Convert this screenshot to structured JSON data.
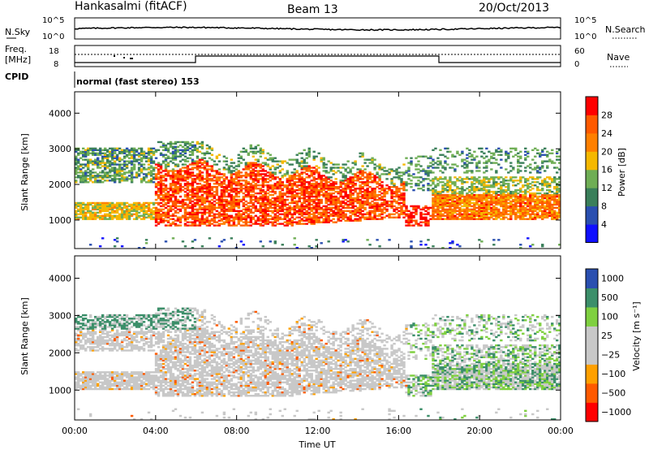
{
  "header": {
    "station": "Hankasalmi (fitACF)",
    "beam": "Beam 13",
    "date": "20/Oct/2013"
  },
  "noise_panel": {
    "left_label": "N.Sky",
    "right_label": "N.Search",
    "ticks_left": [
      "10^5",
      "10^0"
    ],
    "ticks_right": [
      "10^5",
      "10^0"
    ]
  },
  "freq_panel": {
    "left_label_1": "Freq.",
    "left_label_2": "[MHz]",
    "right_label": "Nave",
    "ticks_left": [
      "18",
      "8"
    ],
    "ticks_right": [
      "60",
      "0"
    ]
  },
  "cpid": {
    "label": "CPID",
    "mode_text": "normal (fast stereo) 153"
  },
  "colors": {
    "power_scale": [
      "#1010ff",
      "#2a4fb0",
      "#3a7f5a",
      "#6fae55",
      "#f5b800",
      "#ff8000",
      "#ff5a00",
      "#ff0000"
    ],
    "velocity_scale": [
      "#ff0000",
      "#ff5a00",
      "#ffa000",
      "#c8c8c8",
      "#c8c8c8",
      "#7fd040",
      "#3c8f6a",
      "#2a4fb0"
    ]
  },
  "chart_data": [
    {
      "type": "heatmap",
      "panel": "power",
      "ylabel": "Slant Range [km]",
      "yticks": [
        "1000",
        "2000",
        "3000",
        "4000"
      ],
      "ylim": [
        200,
        4600
      ],
      "xlim": [
        0,
        24
      ],
      "colorbar_label": "Power [dB]",
      "colorbar_ticks": [
        "4",
        "8",
        "12",
        "16",
        "20",
        "24",
        "28"
      ]
    },
    {
      "type": "heatmap",
      "panel": "velocity",
      "ylabel": "Slant Range [km]",
      "yticks": [
        "1000",
        "2000",
        "3000",
        "4000"
      ],
      "ylim": [
        200,
        4600
      ],
      "xlim": [
        0,
        24
      ],
      "colorbar_label": "Velocity [m s⁻¹]",
      "colorbar_ticks": [
        "1000",
        "500",
        "100",
        "25",
        "−25",
        "−100",
        "−500",
        "−1000"
      ]
    }
  ],
  "x_axis": {
    "ticks": [
      "00:00",
      "04:00",
      "08:00",
      "12:00",
      "16:00",
      "20:00",
      "00:00"
    ],
    "label": "Time UT"
  }
}
